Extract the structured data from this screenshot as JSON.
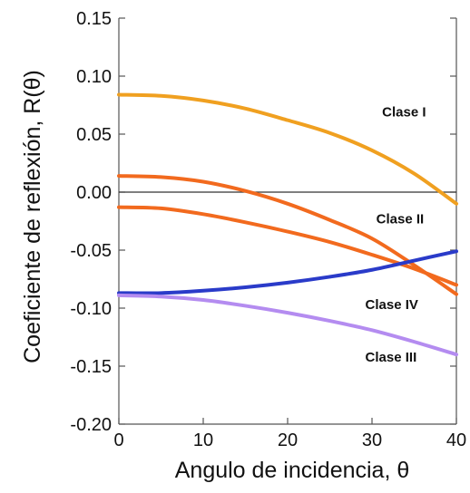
{
  "chart_data": {
    "type": "line",
    "title": "",
    "xlabel": "Angulo de incidencia, θ",
    "ylabel": "Coeficiente de reflexión, R(θ)",
    "xlim": [
      0,
      40
    ],
    "ylim": [
      -0.2,
      0.15
    ],
    "x_ticks": [
      "0",
      "10",
      "20",
      "30",
      "40"
    ],
    "y_ticks": [
      "0.15",
      "0.10",
      "0.05",
      "0.00",
      "-0.05",
      "-0.10",
      "-0.15",
      "-0.20"
    ],
    "grid": false,
    "zero_line": true,
    "series": [
      {
        "color": "#F0A020",
        "points": [
          [
            0,
            0.084
          ],
          [
            5,
            0.083
          ],
          [
            10,
            0.079
          ],
          [
            15,
            0.072
          ],
          [
            20,
            0.062
          ],
          [
            25,
            0.051
          ],
          [
            30,
            0.036
          ],
          [
            35,
            0.016
          ],
          [
            40,
            -0.01
          ]
        ]
      },
      {
        "color": "#F26A1E",
        "points": [
          [
            0,
            0.014
          ],
          [
            5,
            0.013
          ],
          [
            10,
            0.009
          ],
          [
            15,
            0.001
          ],
          [
            20,
            -0.01
          ],
          [
            25,
            -0.024
          ],
          [
            30,
            -0.04
          ],
          [
            35,
            -0.063
          ],
          [
            40,
            -0.088
          ]
        ]
      },
      {
        "color": "#F26A1E",
        "points": [
          [
            0,
            -0.013
          ],
          [
            5,
            -0.014
          ],
          [
            10,
            -0.019
          ],
          [
            15,
            -0.026
          ],
          [
            20,
            -0.034
          ],
          [
            25,
            -0.043
          ],
          [
            30,
            -0.054
          ],
          [
            35,
            -0.066
          ],
          [
            40,
            -0.08
          ]
        ]
      },
      {
        "color": "#2A3BC9",
        "points": [
          [
            0,
            -0.087
          ],
          [
            5,
            -0.087
          ],
          [
            10,
            -0.085
          ],
          [
            15,
            -0.082
          ],
          [
            20,
            -0.078
          ],
          [
            25,
            -0.073
          ],
          [
            30,
            -0.067
          ],
          [
            35,
            -0.059
          ],
          [
            40,
            -0.051
          ]
        ]
      },
      {
        "color": "#B48CF0",
        "points": [
          [
            0,
            -0.089
          ],
          [
            5,
            -0.09
          ],
          [
            10,
            -0.093
          ],
          [
            15,
            -0.098
          ],
          [
            20,
            -0.104
          ],
          [
            25,
            -0.111
          ],
          [
            30,
            -0.119
          ],
          [
            35,
            -0.129
          ],
          [
            40,
            -0.14
          ]
        ]
      }
    ],
    "annotations": [
      {
        "text": "Clase I",
        "x": 31.2,
        "y": 0.069
      },
      {
        "text": "Clase II",
        "x": 30.5,
        "y": -0.023
      },
      {
        "text": "Clase IV",
        "x": 29.2,
        "y": -0.097
      },
      {
        "text": "Clase III",
        "x": 29.2,
        "y": -0.142
      }
    ]
  }
}
